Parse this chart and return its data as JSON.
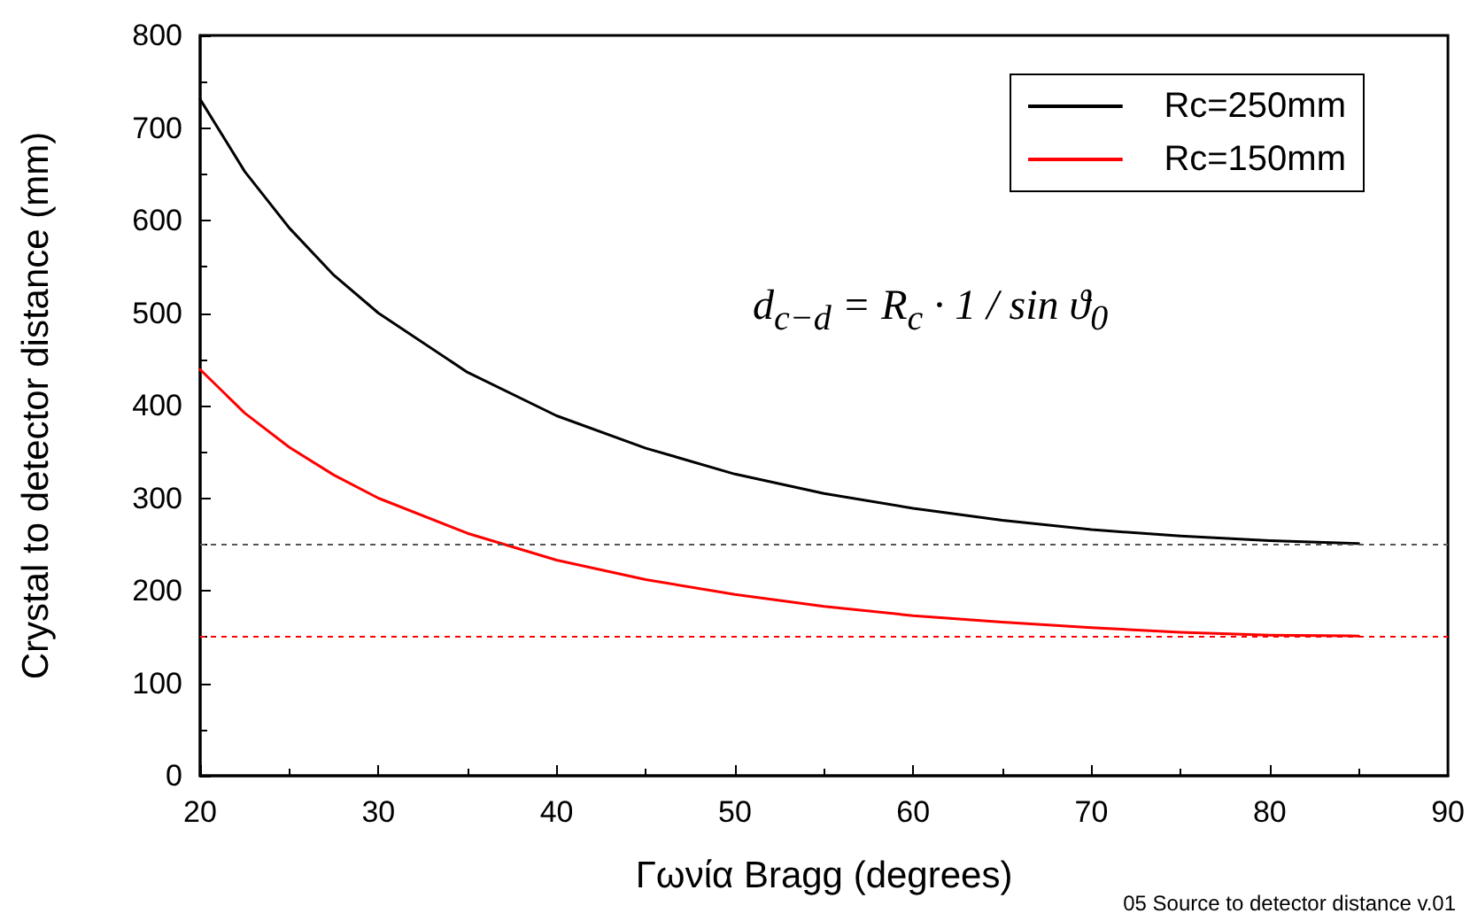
{
  "chart_data": {
    "type": "line",
    "xlabel": "Γωνία Bragg (degrees)",
    "ylabel": "Crystal to detector distance (mm)",
    "xlim": [
      20,
      90
    ],
    "xticks": [
      20,
      30,
      40,
      50,
      60,
      70,
      80,
      90
    ],
    "ylim": [
      0,
      800
    ],
    "yticks": [
      0,
      100,
      200,
      300,
      400,
      500,
      600,
      700,
      800
    ],
    "x": [
      20,
      22.5,
      25,
      27.5,
      30,
      35,
      40,
      45,
      50,
      55,
      60,
      65,
      70,
      75,
      80,
      85
    ],
    "series": [
      {
        "name": "Rc=250mm",
        "color": "#000000",
        "values": [
          731,
          653,
          592,
          541,
          500,
          436,
          389,
          354,
          326,
          305,
          289,
          276,
          266,
          259,
          254,
          251
        ]
      },
      {
        "name": "Rc=150mm",
        "color": "#ff0000",
        "values": [
          439,
          392,
          355,
          325,
          300,
          262,
          233,
          212,
          196,
          183,
          173,
          166,
          160,
          155,
          152,
          151
        ]
      }
    ],
    "ref_lines": [
      {
        "axis": "y",
        "value": 250,
        "color": "#555555",
        "line_style": "dotted"
      },
      {
        "axis": "y",
        "value": 150,
        "color": "#ff0000",
        "line_style": "dotted"
      }
    ],
    "legend": "top right",
    "grid": false,
    "marker": "none",
    "line_style": "solid",
    "annotations": [
      "d$_{c−d}$ = R$_{c}$ · 1 / sin ϑ$_{0}$",
      "05 Source to detector distance v.01"
    ]
  }
}
